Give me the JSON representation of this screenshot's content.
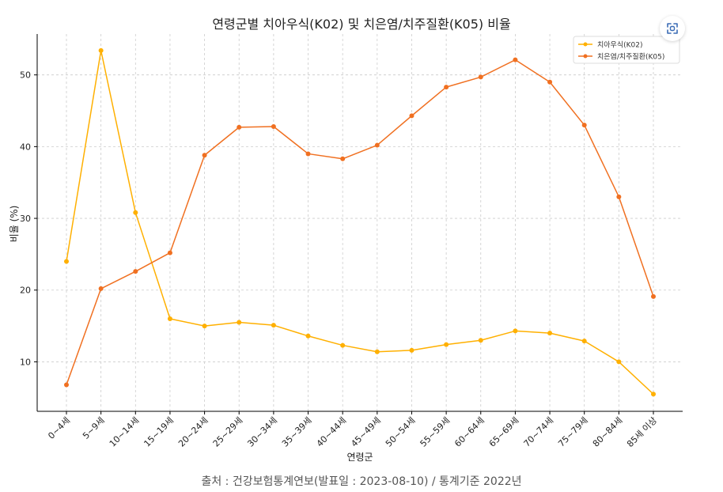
{
  "chart_data": {
    "type": "line",
    "title": "연령군별 치아우식(K02) 및 치은염/치주질환(K05) 비율",
    "xlabel": "연령군",
    "ylabel": "비율 (%)",
    "categories": [
      "0~4세",
      "5~9세",
      "10~14세",
      "15~19세",
      "20~24세",
      "25~29세",
      "30~34세",
      "35~39세",
      "40~44세",
      "45~49세",
      "50~54세",
      "55~59세",
      "60~64세",
      "65~69세",
      "70~74세",
      "75~79세",
      "80~84세",
      "85세 이상"
    ],
    "ylim": [
      3.1,
      55.7
    ],
    "yticks": [
      10,
      20,
      30,
      40,
      50
    ],
    "grid": true,
    "legend_position": "top-right",
    "series": [
      {
        "name": "치아우식(K02)",
        "color": "#FFB000",
        "values": [
          24.0,
          53.4,
          30.8,
          16.0,
          15.0,
          15.5,
          15.1,
          13.6,
          12.3,
          11.4,
          11.6,
          12.4,
          13.0,
          14.3,
          14.0,
          12.9,
          10.0,
          5.5
        ]
      },
      {
        "name": "치은염/치주질환(K05)",
        "color": "#F07021",
        "values": [
          6.8,
          20.2,
          22.6,
          25.2,
          38.8,
          42.7,
          42.8,
          39.0,
          38.3,
          40.2,
          44.3,
          48.3,
          49.7,
          52.1,
          49.0,
          43.0,
          33.0,
          19.1
        ]
      }
    ]
  },
  "caption": "출처 : 건강보험통계연보(발표일 : 2023-08-10) / 통계기준 2022년",
  "ui": {
    "expand_icon": "expand-icon",
    "accent": "#3B6CB5"
  }
}
